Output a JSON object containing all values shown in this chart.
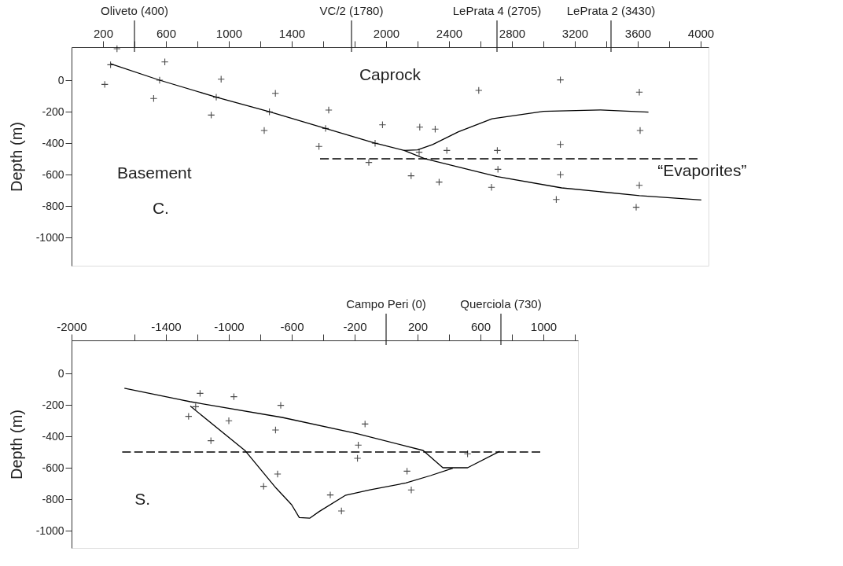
{
  "chart_data": [
    {
      "type": "scatter",
      "ylabel": "Depth (m)",
      "grid": false,
      "xlim": [
        0,
        4050
      ],
      "ylim": [
        -1180,
        210
      ],
      "xticks": [
        200,
        {
          "value": 400,
          "label": null
        },
        600,
        {
          "value": 800,
          "label": null
        },
        1000,
        {
          "value": 1200,
          "label": null
        },
        1400,
        {
          "value": 1600,
          "label": null
        },
        {
          "value": 1800,
          "label": null
        },
        2000,
        {
          "value": 2200,
          "label": null
        },
        2400,
        {
          "value": 2600,
          "label": null
        },
        2800,
        {
          "value": 3000,
          "label": null
        },
        3200,
        {
          "value": 3400,
          "label": null
        },
        3600,
        {
          "value": 3800,
          "label": null
        },
        4000
      ],
      "yticks": [
        0,
        -200,
        -400,
        -600,
        -800,
        -1000
      ],
      "series": [
        {
          "marker": "cross",
          "color": "#000000",
          "x": [
            289,
            248,
            211,
            593,
            560,
            522,
            951,
            920,
            888,
            1296,
            1258,
            1225,
            1635,
            1615,
            1573,
            1977,
            1930,
            1890,
            2214,
            2312,
            2210,
            2386,
            2707,
            2589,
            3108,
            3610,
            3615,
            3108,
            2159,
            2337,
            2670,
            2711,
            3108,
            3082,
            3610,
            3590
          ],
          "values": [
            200,
            98,
            -27,
            116,
            0,
            -116,
            6,
            -108,
            -222,
            -84,
            -201,
            -320,
            -190,
            -307,
            -421,
            -284,
            -401,
            -523,
            -299,
            -311,
            -458,
            -447,
            -447,
            -65,
            2,
            -76,
            -320,
            -409,
            -608,
            -648,
            -681,
            -567,
            -601,
            -759,
            -669,
            -808
          ]
        },
        {
          "type": "line",
          "color": "#000000",
          "line_style": "solid",
          "x": [
            248,
            560,
            920,
            1258,
            1615,
            1930,
            1967,
            2115,
            2246,
            2706,
            3116,
            3611,
            4004
          ],
          "values": [
            104,
            0,
            -108,
            -201,
            -307,
            -401,
            -409,
            -447,
            -499,
            -613,
            -685,
            -734,
            -762
          ]
        },
        {
          "type": "line",
          "color": "#000000",
          "line_style": "solid",
          "x": [
            2115,
            2200,
            2296,
            2460,
            2673,
            3001,
            3363,
            3668
          ],
          "values": [
            -447,
            -443,
            -409,
            -328,
            -246,
            -198,
            -189,
            -203
          ]
        },
        {
          "type": "line",
          "color": "#000000",
          "line_style": "dashed",
          "x": [
            1580,
            3980
          ],
          "values": [
            -500,
            -500
          ]
        }
      ],
      "ref_lines": [
        {
          "axis": "x",
          "value": 400,
          "label": "Oliveto (400)"
        },
        {
          "axis": "x",
          "value": 1780,
          "label": "VC/2 (1780)"
        },
        {
          "axis": "x",
          "value": 2705,
          "label": "LePrata 4 (2705)"
        },
        {
          "axis": "x",
          "value": 3430,
          "label": "LePrata 2 (3430)"
        }
      ],
      "annotations": [
        "Caprock",
        "Basement",
        "C.",
        "“Evaporites”"
      ]
    },
    {
      "type": "scatter",
      "ylabel": "Depth (m)",
      "grid": false,
      "xlim": [
        -2000,
        1220
      ],
      "ylim": [
        -1110,
        210
      ],
      "xticks": [
        -2000,
        {
          "value": -1600,
          "label": null
        },
        -1400,
        {
          "value": -1200,
          "label": null
        },
        -1000,
        {
          "value": -800,
          "label": null
        },
        -600,
        {
          "value": -400,
          "label": null
        },
        -200,
        200,
        {
          "value": 400,
          "label": null
        },
        600,
        {
          "value": 800,
          "label": null
        },
        1000,
        {
          "value": 1200,
          "label": null
        }
      ],
      "yticks": [
        0,
        -200,
        -400,
        -600,
        -800,
        -1000
      ],
      "series": [
        {
          "marker": "cross",
          "color": "#000000",
          "x": [
            -1183,
            -968,
            -670,
            -1211,
            -1256,
            -1000,
            -703,
            -1114,
            -134,
            -177,
            -182,
            518,
            133,
            160,
            -355,
            -284,
            -690,
            -779
          ],
          "values": [
            -127,
            -148,
            -203,
            -212,
            -273,
            -301,
            -360,
            -428,
            -322,
            -456,
            -540,
            -511,
            -622,
            -741,
            -773,
            -875,
            -640,
            -718
          ]
        },
        {
          "type": "line",
          "color": "#000000",
          "line_style": "solid",
          "x": [
            -1664,
            -1245,
            -661,
            -190,
            235,
            361,
            518,
            722
          ],
          "values": [
            -94,
            -180,
            -280,
            -382,
            -490,
            -600,
            -600,
            -496
          ]
        },
        {
          "type": "line",
          "color": "#000000",
          "line_style": "solid",
          "x": [
            -1245,
            -895,
            -700,
            -601,
            -552,
            -486,
            -425,
            -260,
            -103,
            125,
            282,
            424
          ],
          "values": [
            -208,
            -493,
            -729,
            -835,
            -917,
            -921,
            -878,
            -776,
            -741,
            -697,
            -650,
            -603
          ]
        },
        {
          "type": "line",
          "color": "#000000",
          "line_style": "dashed",
          "x": [
            -1678,
            980
          ],
          "values": [
            -500,
            -500
          ]
        }
      ],
      "ref_lines": [
        {
          "axis": "x",
          "value": 0,
          "label": "Campo Peri (0)"
        },
        {
          "axis": "x",
          "value": 730,
          "label": "Querciola (730)"
        }
      ],
      "annotations": [
        "S."
      ]
    }
  ]
}
